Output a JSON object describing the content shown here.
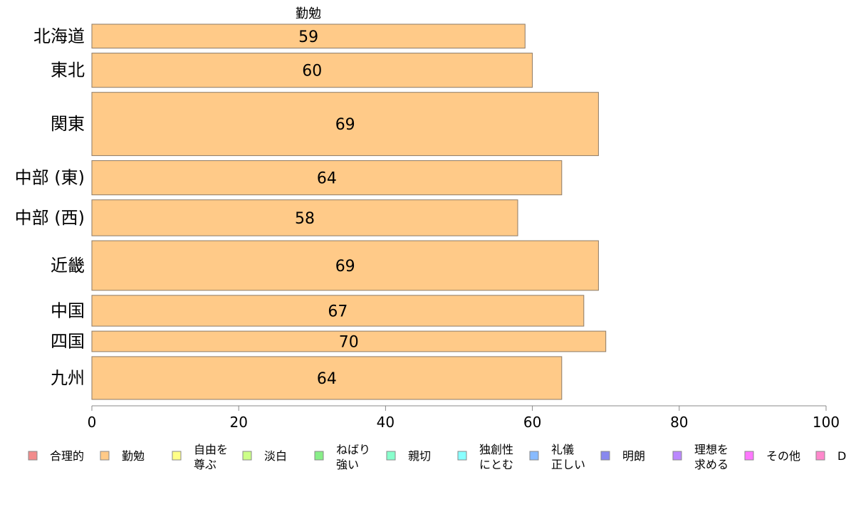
{
  "chart_data": {
    "type": "bar",
    "orientation": "horizontal",
    "title": "勤勉",
    "categories": [
      "北海道",
      "東北",
      "関東",
      "中部 (東)",
      "中部 (西)",
      "近畿",
      "中国",
      "四国",
      "九州"
    ],
    "values": [
      59,
      60,
      69,
      64,
      58,
      69,
      67,
      70,
      64
    ],
    "category_weights": [
      0.7,
      1.0,
      1.85,
      1.0,
      1.05,
      1.45,
      0.9,
      0.6,
      1.25
    ],
    "xlim": [
      0,
      100
    ],
    "x_ticks": [
      0,
      20,
      40,
      60,
      80,
      100
    ],
    "bar_color": "#FFCA88",
    "bar_stroke": "#8c7a66",
    "grid": false,
    "legend_position": "bottom",
    "legend": [
      {
        "label": [
          "合理的"
        ],
        "color": "#F28C8C"
      },
      {
        "label": [
          "勤勉"
        ],
        "color": "#FFCA88"
      },
      {
        "label": [
          "自由を",
          "尊ぶ"
        ],
        "color": "#FFFF88"
      },
      {
        "label": [
          "淡白"
        ],
        "color": "#CCFF88"
      },
      {
        "label": [
          "ねばり",
          "強い"
        ],
        "color": "#88EE88"
      },
      {
        "label": [
          "親切"
        ],
        "color": "#88FFCC"
      },
      {
        "label": [
          "独創性",
          "にとむ"
        ],
        "color": "#88FFFF"
      },
      {
        "label": [
          "礼儀",
          "正しい"
        ],
        "color": "#88BBFF"
      },
      {
        "label": [
          "明朗"
        ],
        "color": "#8888EE"
      },
      {
        "label": [
          "理想を",
          "求める"
        ],
        "color": "#BB88FF"
      },
      {
        "label": [
          "その他"
        ],
        "color": "#FF77FF"
      },
      {
        "label": [
          "D"
        ],
        "color": "#FF88CC"
      }
    ]
  }
}
